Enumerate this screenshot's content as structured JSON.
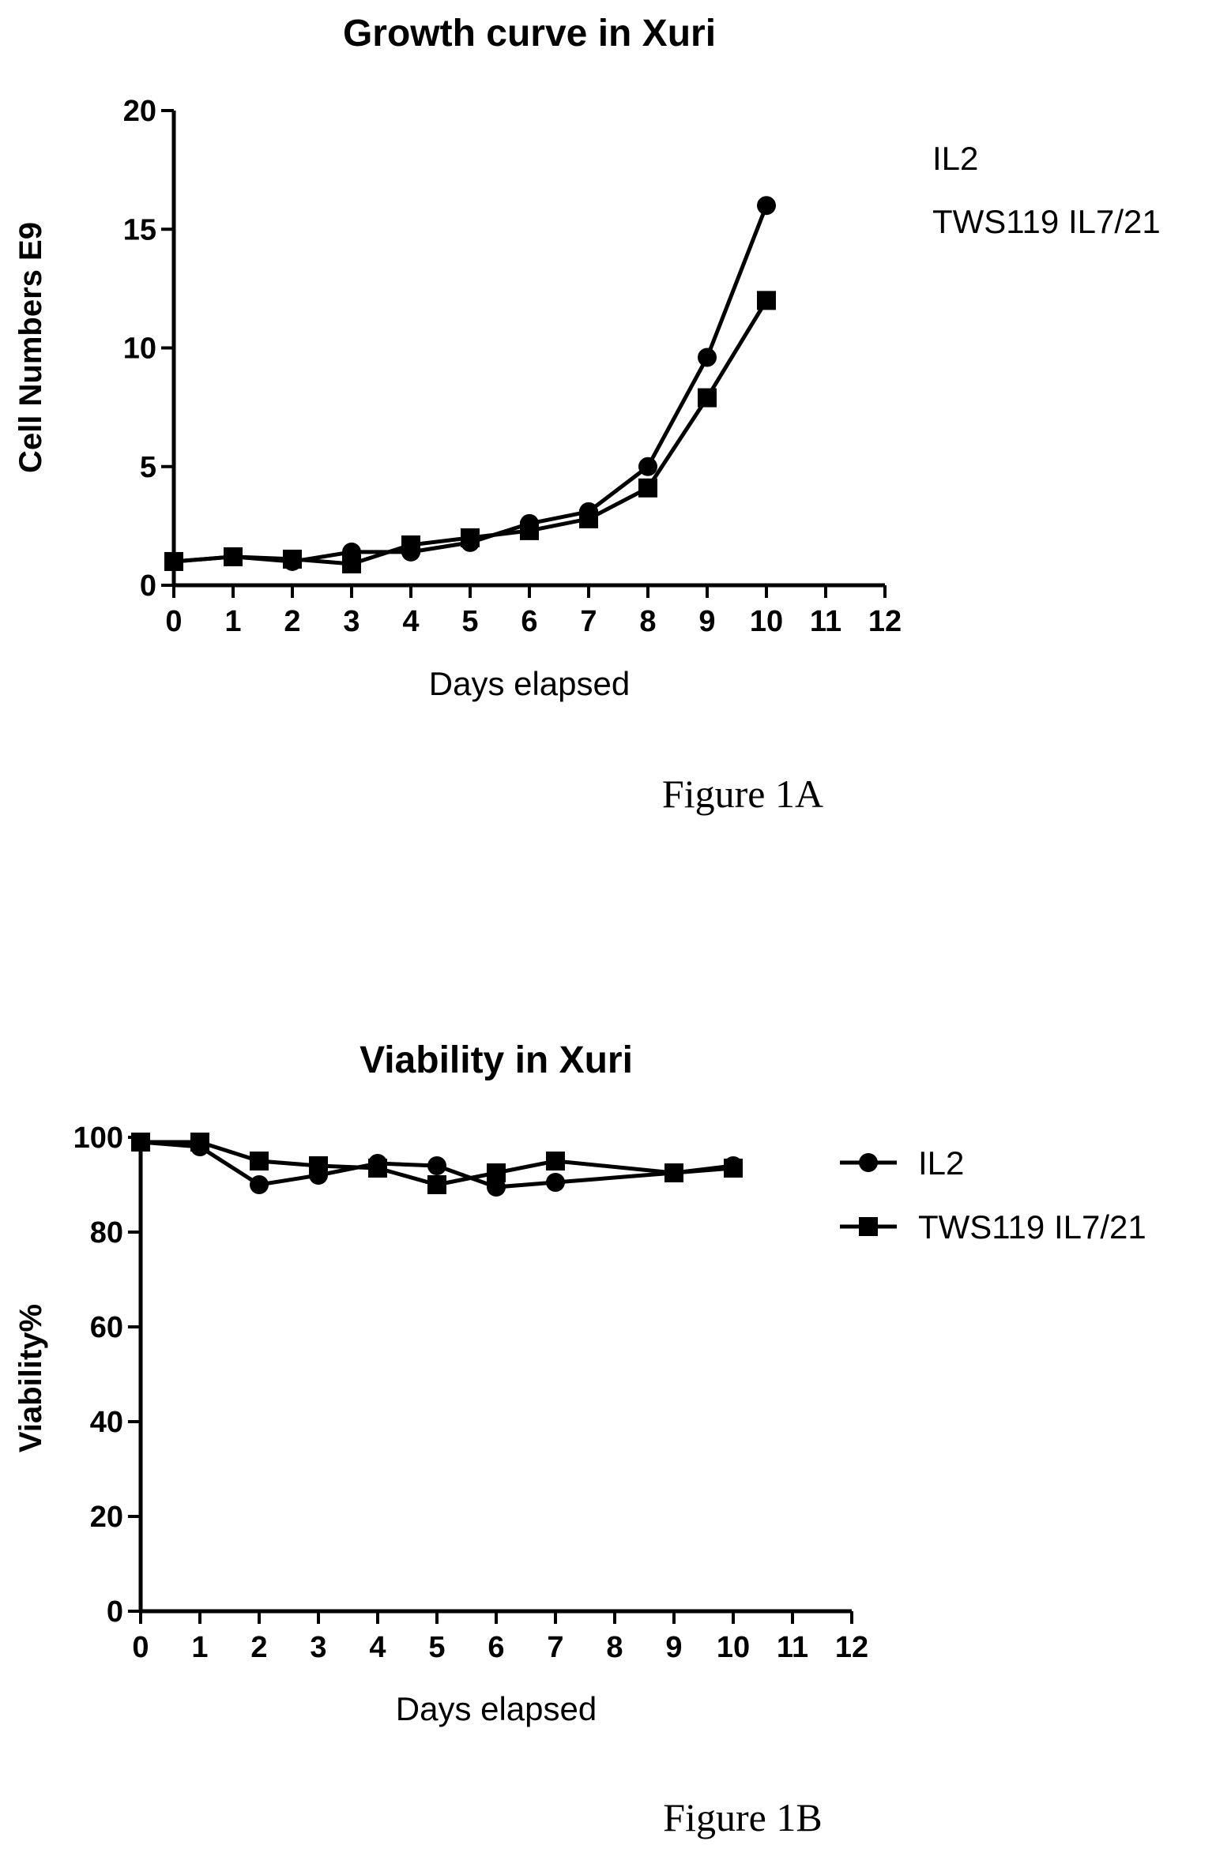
{
  "chart_data": [
    {
      "type": "line",
      "title": "Growth curve in Xuri",
      "xlabel": "Days elapsed",
      "ylabel": "Cell Numbers E9",
      "xlim": [
        0,
        12
      ],
      "ylim": [
        0,
        20
      ],
      "x_ticks": [
        "0",
        "1",
        "2",
        "3",
        "4",
        "5",
        "6",
        "7",
        "8",
        "9",
        "10",
        "11",
        "12"
      ],
      "y_ticks": [
        "0",
        "5",
        "10",
        "15",
        "20"
      ],
      "legend_placement": "right",
      "legend_markers_shown": false,
      "series": [
        {
          "name": "IL2",
          "marker": "circle",
          "x": [
            0,
            1,
            2,
            3,
            4,
            5,
            6,
            7,
            8,
            9,
            10
          ],
          "y": [
            1.0,
            1.2,
            1.0,
            1.4,
            1.4,
            1.8,
            2.6,
            3.1,
            5.0,
            9.6,
            16.0
          ]
        },
        {
          "name": "TWS119 IL7/21",
          "marker": "square",
          "x": [
            0,
            1,
            2,
            3,
            4,
            5,
            6,
            7,
            8,
            9,
            10
          ],
          "y": [
            1.0,
            1.2,
            1.1,
            0.9,
            1.7,
            2.0,
            2.3,
            2.8,
            4.1,
            7.9,
            12.0
          ]
        }
      ],
      "caption": "Figure 1A"
    },
    {
      "type": "line",
      "title": "Viability in Xuri",
      "xlabel": "Days elapsed",
      "ylabel": "Viability%",
      "xlim": [
        0,
        12
      ],
      "ylim": [
        0,
        100
      ],
      "x_ticks": [
        "0",
        "1",
        "2",
        "3",
        "4",
        "5",
        "6",
        "7",
        "8",
        "9",
        "10",
        "11",
        "12"
      ],
      "y_ticks": [
        "0",
        "20",
        "40",
        "60",
        "80",
        "100"
      ],
      "legend_placement": "right",
      "legend_markers_shown": true,
      "series": [
        {
          "name": "IL2",
          "marker": "circle",
          "x": [
            0,
            1,
            2,
            3,
            4,
            5,
            6,
            7,
            9,
            10
          ],
          "y": [
            99,
            98,
            90,
            92,
            94.5,
            94,
            89.5,
            90.5,
            92.5,
            94
          ]
        },
        {
          "name": "TWS119 IL7/21",
          "marker": "square",
          "x": [
            0,
            1,
            2,
            3,
            4,
            5,
            6,
            7,
            9,
            10
          ],
          "y": [
            99,
            99,
            95,
            94,
            93.5,
            90,
            92.5,
            95,
            92.5,
            93.5
          ]
        }
      ],
      "caption": "Figure 1B"
    }
  ]
}
